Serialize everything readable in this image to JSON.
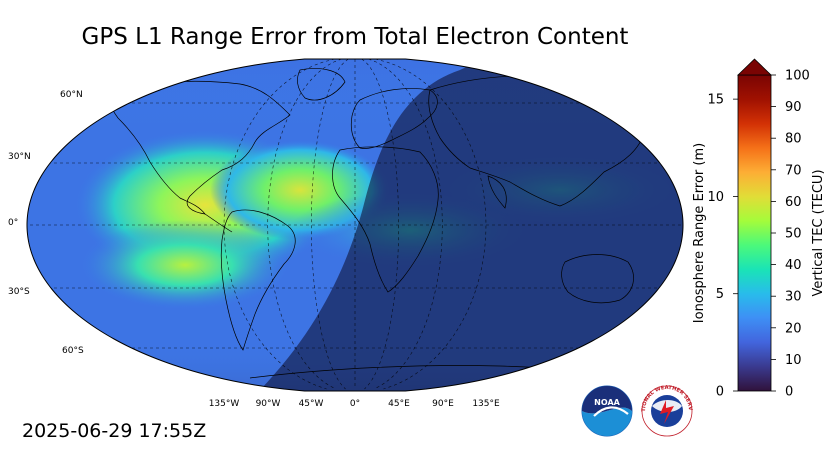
{
  "title": "GPS L1 Range Error from Total Electron Content",
  "timestamp": "2025-06-29 17:55Z",
  "map": {
    "projection": "robinson",
    "lat_labels": [
      "60°N",
      "30°N",
      "0°",
      "30°S",
      "60°S"
    ],
    "lon_labels": [
      "135°W",
      "90°W",
      "45°W",
      "0°",
      "45°E",
      "90°E",
      "135°E"
    ]
  },
  "colorbar": {
    "left_axis_label": "Ionosphere Range Error (m)",
    "left_ticks": [
      "0",
      "5",
      "10",
      "15"
    ],
    "right_axis_label": "Vertical TEC (TECU)",
    "right_ticks": [
      "0",
      "10",
      "20",
      "30",
      "40",
      "50",
      "60",
      "70",
      "80",
      "90",
      "100"
    ],
    "colors": [
      "#30123b",
      "#3a3a8f",
      "#4265dd",
      "#3e8ff5",
      "#28bceb",
      "#1ae4b6",
      "#4cf97a",
      "#a4fc3b",
      "#e1dd37",
      "#fdae35",
      "#f57118",
      "#d23105",
      "#a01101",
      "#7a0403"
    ],
    "extend": "max"
  },
  "logos": {
    "noaa_text": "NOAA",
    "nws_text": "NATIONAL WEATHER SERVICE"
  },
  "colors": {
    "ocean_low": "#2a2a6e",
    "ocean_mid": "#3b6fe0",
    "high_tec": "#c9e34a",
    "night_shade": "#0b0b2a"
  }
}
